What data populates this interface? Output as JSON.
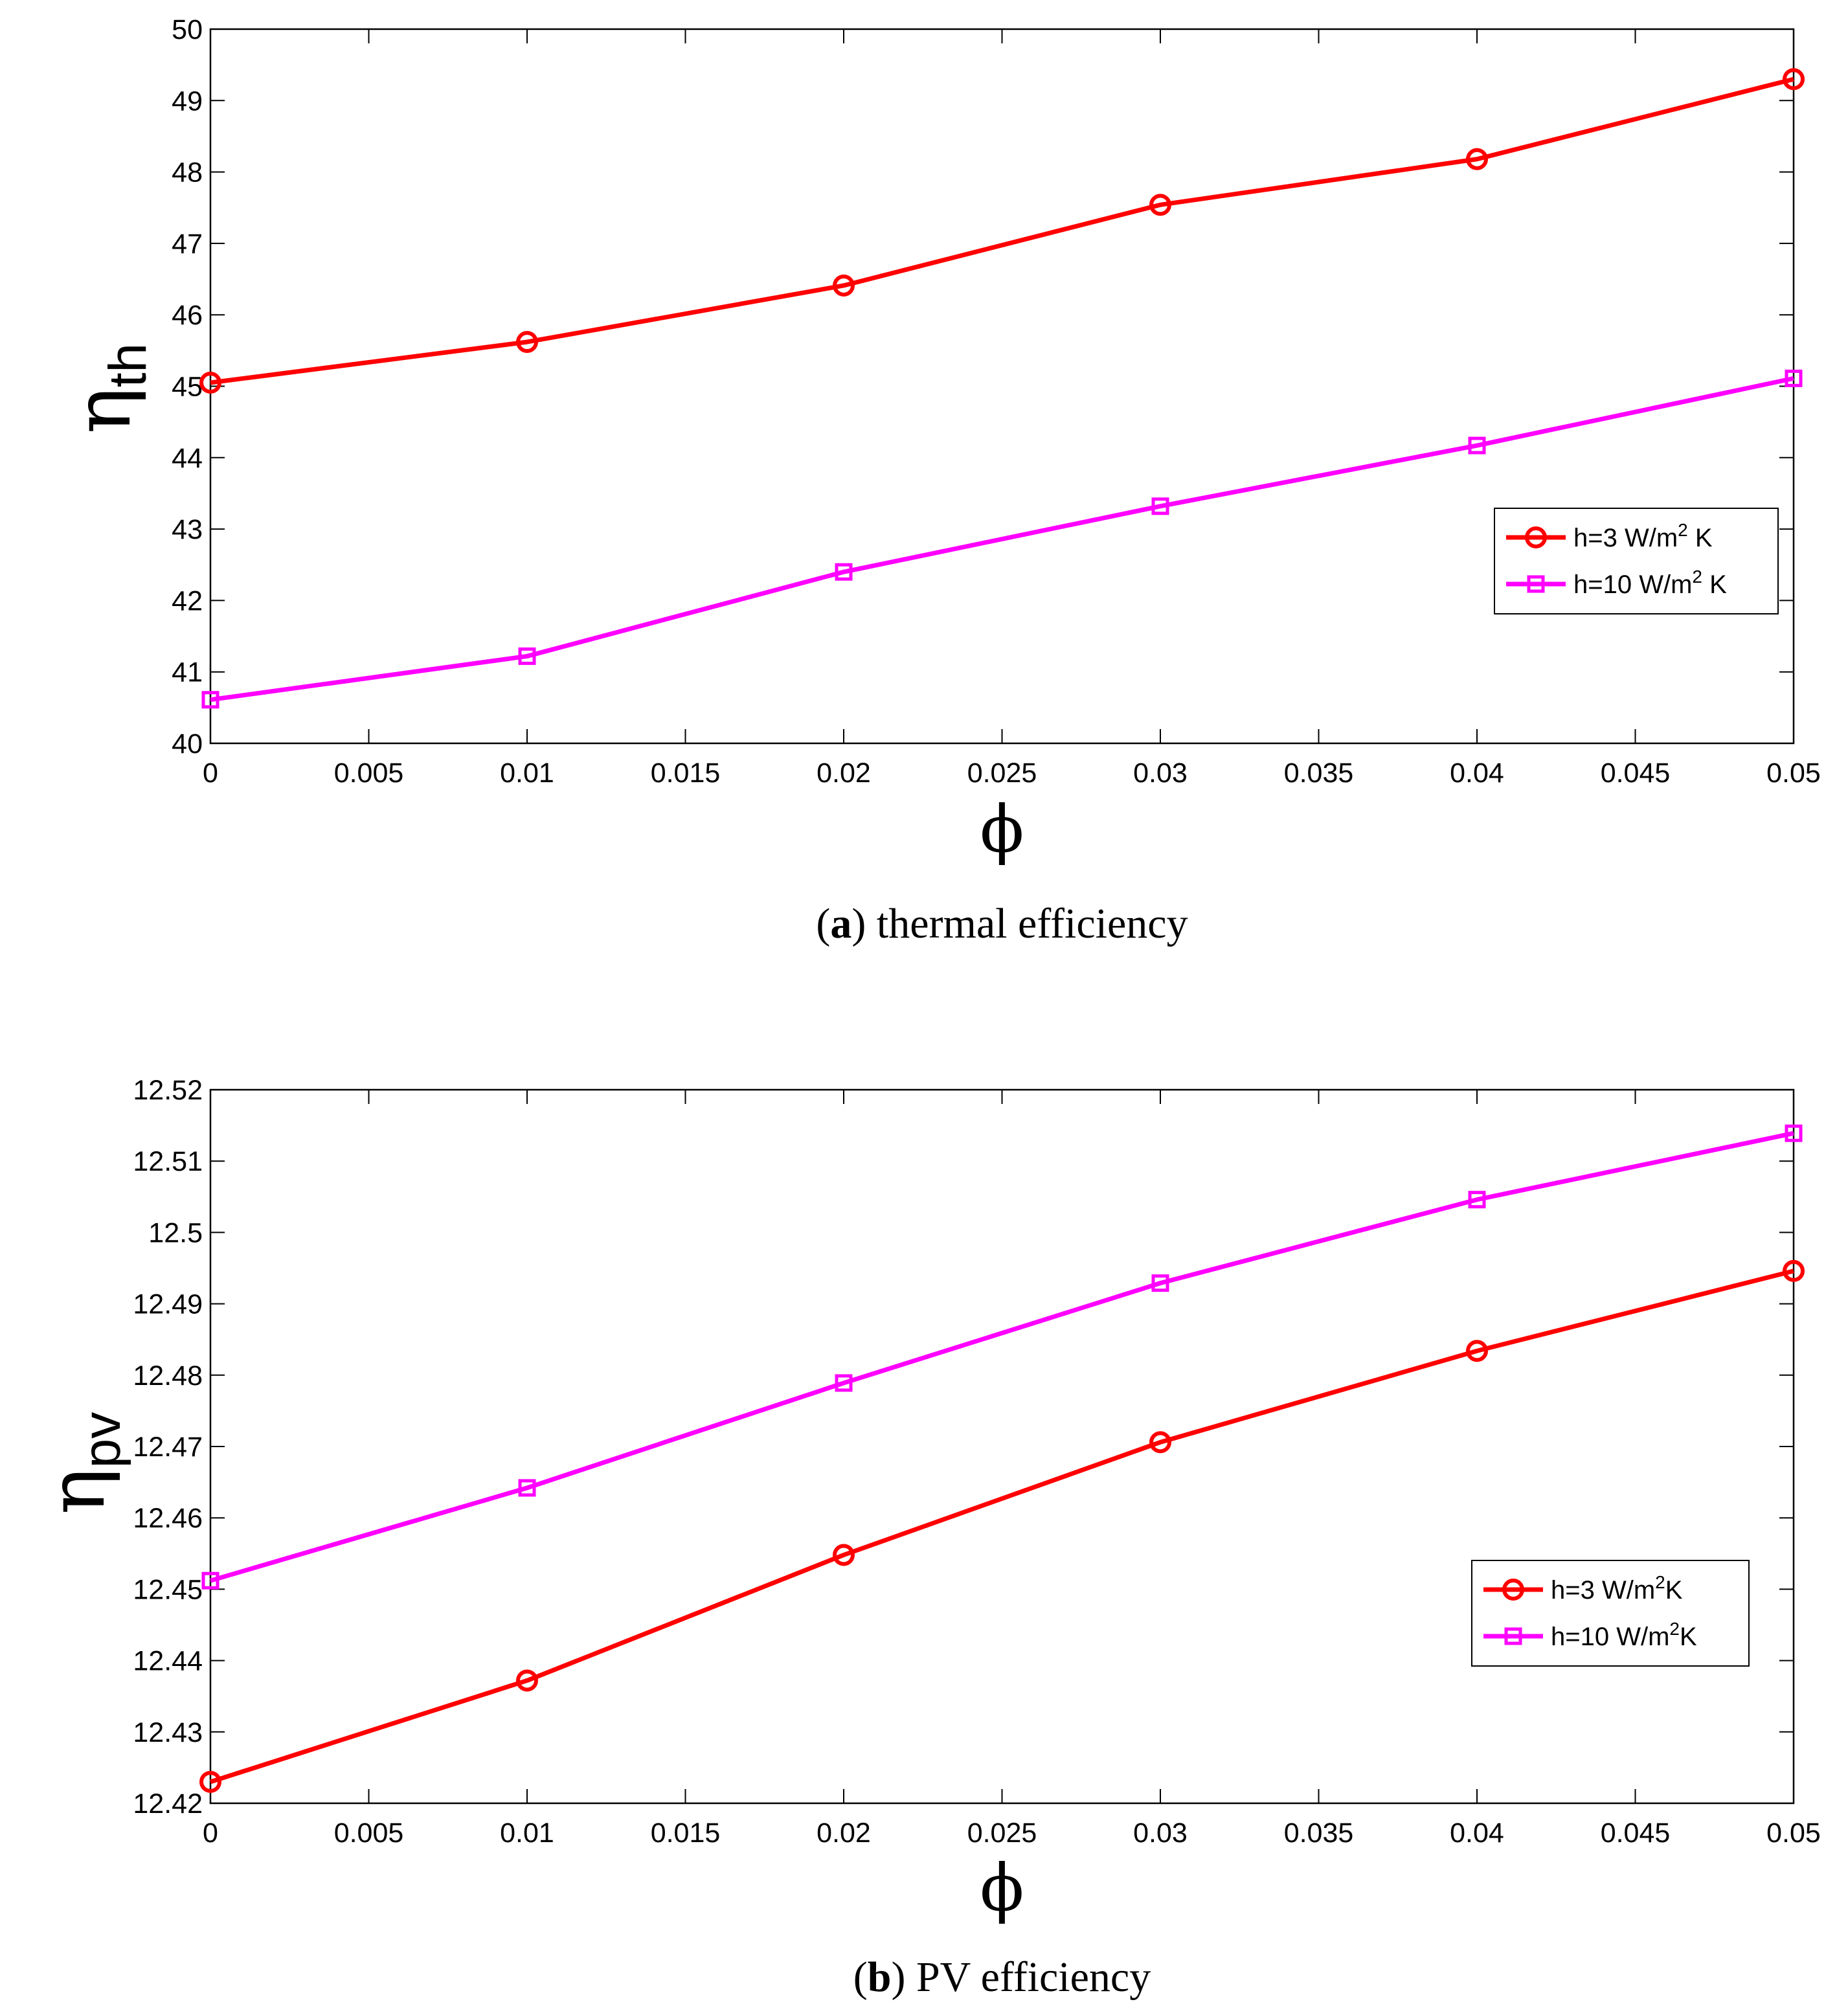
{
  "chart_data": [
    {
      "type": "line",
      "caption_letter": "a",
      "caption_text": "thermal efficiency",
      "xlabel": "ϕ",
      "ylabel_main": "η",
      "ylabel_sub": "th",
      "x": [
        0,
        0.01,
        0.02,
        0.03,
        0.04,
        0.05
      ],
      "xlim": [
        0,
        0.05
      ],
      "ylim": [
        40,
        50
      ],
      "x_ticks": [
        "0",
        "0.005",
        "0.01",
        "0.015",
        "0.02",
        "0.025",
        "0.03",
        "0.035",
        "0.04",
        "0.045",
        "0.05"
      ],
      "y_ticks": [
        "40",
        "41",
        "42",
        "43",
        "44",
        "45",
        "46",
        "47",
        "48",
        "49",
        "50"
      ],
      "legend_position": "middle-right",
      "series": [
        {
          "name_prefix": "h=3 W/m",
          "name_sup": "2",
          "name_suffix": " K",
          "color": "#ff0000",
          "marker": "circle",
          "values": [
            45.05,
            45.62,
            46.41,
            47.54,
            48.18,
            49.3
          ]
        },
        {
          "name_prefix": "h=10 W/m",
          "name_sup": "2",
          "name_suffix": " K",
          "color": "#ff00ff",
          "marker": "square",
          "values": [
            40.61,
            41.22,
            42.4,
            43.32,
            44.17,
            45.11
          ]
        }
      ]
    },
    {
      "type": "line",
      "caption_letter": "b",
      "caption_text": "PV efficiency",
      "xlabel": "ϕ",
      "ylabel_main": "η",
      "ylabel_sub": "pv",
      "x": [
        0,
        0.01,
        0.02,
        0.03,
        0.04,
        0.05
      ],
      "xlim": [
        0,
        0.05
      ],
      "ylim": [
        12.42,
        12.52
      ],
      "x_ticks": [
        "0",
        "0.005",
        "0.01",
        "0.015",
        "0.02",
        "0.025",
        "0.03",
        "0.035",
        "0.04",
        "0.045",
        "0.05"
      ],
      "y_ticks": [
        "12.42",
        "12.43",
        "12.44",
        "12.45",
        "12.46",
        "12.47",
        "12.48",
        "12.49",
        "12.5",
        "12.51",
        "12.52"
      ],
      "legend_position": "lower-right",
      "series": [
        {
          "name_prefix": "h=3 W/m",
          "name_sup": "2",
          "name_suffix": "K",
          "color": "#ff0000",
          "marker": "circle",
          "values": [
            12.423,
            12.4372,
            12.4548,
            12.4706,
            12.4834,
            12.4946
          ]
        },
        {
          "name_prefix": "h=10 W/m",
          "name_sup": "2",
          "name_suffix": "K",
          "color": "#ff00ff",
          "marker": "square",
          "values": [
            12.4512,
            12.4642,
            12.4789,
            12.4929,
            12.5046,
            12.5139
          ]
        }
      ]
    }
  ]
}
